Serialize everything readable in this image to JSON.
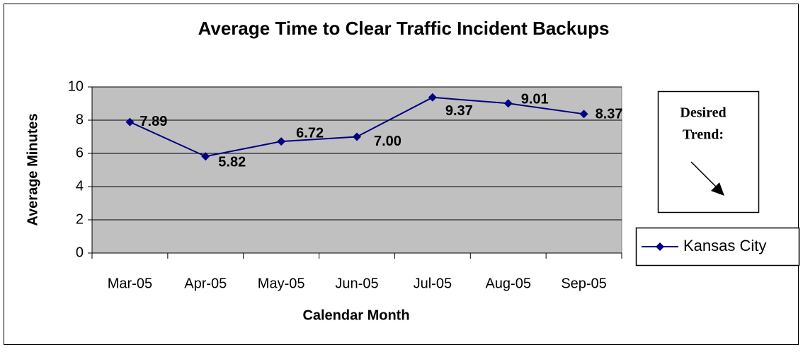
{
  "chart_data": {
    "type": "line",
    "title": "Average Time to Clear Traffic Incident Backups",
    "x_label": "Calendar Month",
    "y_label": "Average Minutes",
    "categories": [
      "Mar-05",
      "Apr-05",
      "May-05",
      "Jun-05",
      "Jul-05",
      "Aug-05",
      "Sep-05"
    ],
    "series": [
      {
        "name": "Kansas City",
        "color": "#000080",
        "values": [
          7.89,
          5.82,
          6.72,
          7,
          9.37,
          9.01,
          8.37
        ],
        "value_labels": [
          "7.89",
          "5.82",
          "6.72",
          "7.00",
          "9.37",
          "9.01",
          "8.37"
        ]
      }
    ],
    "ylim": [
      0,
      10
    ],
    "yticks": [
      0,
      2,
      4,
      6,
      8,
      10
    ],
    "grid": true,
    "plot_background": "#c0c0c0",
    "legend": "right",
    "annotation": [
      "Desired",
      "Trend:"
    ]
  }
}
